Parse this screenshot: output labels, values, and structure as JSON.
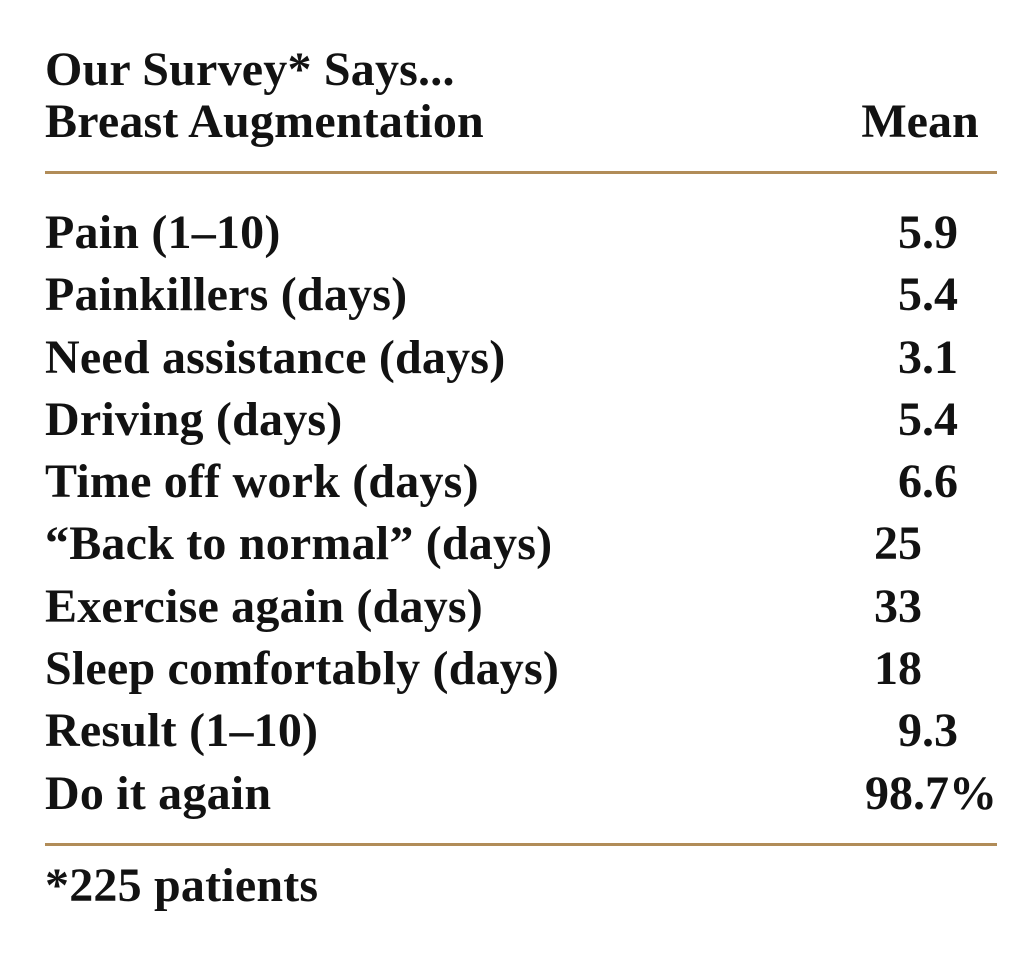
{
  "page": {
    "title": "Our Survey* Says...",
    "table": {
      "header": {
        "label": "Breast Augmentation",
        "value_header": "Mean"
      },
      "rows": [
        {
          "label": "Pain (1–10)",
          "value": "5.9"
        },
        {
          "label": "Painkillers (days)",
          "value": "5.4"
        },
        {
          "label": "Need assistance (days)",
          "value": "3.1"
        },
        {
          "label": "Driving (days)",
          "value": "5.4"
        },
        {
          "label": "Time off work (days)",
          "value": "6.6"
        },
        {
          "label": "“Back to normal” (days)",
          "value": "25"
        },
        {
          "label": "Exercise again (days)",
          "value": "33"
        },
        {
          "label": "Sleep comfortably (days)",
          "value": "18"
        },
        {
          "label": "Result (1–10)",
          "value": "9.3"
        },
        {
          "label": "Do it again",
          "value": "98.7%"
        }
      ]
    },
    "footnote": "*225 patients",
    "colors": {
      "divider": "#b18c58",
      "text": "#121212",
      "background": "#ffffff"
    }
  }
}
